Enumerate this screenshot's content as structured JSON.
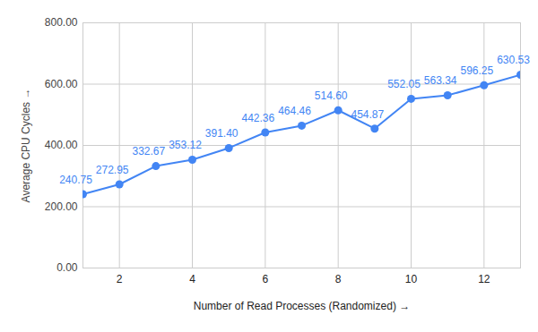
{
  "chart_data": {
    "type": "line",
    "x_label": "Number of Read Processes (Randomized)",
    "y_label": "Average CPU Cycles",
    "x": [
      1,
      2,
      3,
      4,
      5,
      6,
      7,
      8,
      9,
      10,
      11,
      12,
      13
    ],
    "values": [
      240.75,
      272.95,
      332.67,
      353.12,
      391.4,
      442.36,
      464.46,
      514.6,
      454.87,
      552.05,
      563.34,
      596.25,
      630.53
    ],
    "value_labels": [
      "240.75",
      "272.95",
      "332.67",
      "353.12",
      "391.40",
      "442.36",
      "464.46",
      "514.60",
      "454.87",
      "552.05",
      "563.34",
      "596.25",
      "630.53"
    ],
    "color": "#4285f4",
    "marker": "circle",
    "data_labels": true,
    "grid": true,
    "xlim": [
      1,
      13
    ],
    "xticks": [
      2,
      4,
      6,
      8,
      10,
      12
    ],
    "ylim": [
      0,
      800
    ],
    "yticks": [
      {
        "value": 0,
        "label": "0.00"
      },
      {
        "value": 200,
        "label": "200.00"
      },
      {
        "value": 400,
        "label": "400.00"
      },
      {
        "value": 600,
        "label": "600.00"
      },
      {
        "value": 800,
        "label": "800.00"
      }
    ]
  }
}
